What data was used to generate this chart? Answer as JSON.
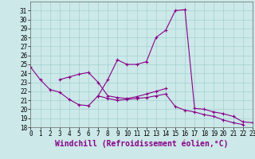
{
  "xlabel": "Windchill (Refroidissement éolien,°C)",
  "bg_color": "#cce8e8",
  "line_color": "#880088",
  "grid_color": "#99cccc",
  "hours": [
    0,
    1,
    2,
    3,
    4,
    5,
    6,
    7,
    8,
    9,
    10,
    11,
    12,
    13,
    14,
    15,
    16,
    17,
    18,
    19,
    20,
    21,
    22,
    23
  ],
  "curve1": [
    24.7,
    23.3,
    22.2,
    21.9,
    21.1,
    20.5,
    20.4,
    21.5,
    23.3,
    25.5,
    25.0,
    25.0,
    25.3,
    28.0,
    28.8,
    31.0,
    31.1,
    20.1,
    20.0,
    19.7,
    19.5,
    19.2,
    18.6,
    18.5
  ],
  "curve2": [
    null,
    null,
    null,
    23.3,
    23.6,
    23.9,
    24.1,
    23.0,
    21.5,
    21.3,
    21.2,
    21.4,
    21.7,
    22.0,
    22.3,
    null,
    null,
    null,
    null,
    null,
    null,
    null,
    null,
    null
  ],
  "curve3": [
    null,
    null,
    null,
    null,
    null,
    null,
    null,
    21.5,
    21.2,
    21.0,
    21.1,
    21.2,
    21.3,
    21.5,
    21.7,
    20.3,
    19.9,
    19.7,
    19.4,
    19.2,
    18.8,
    18.5,
    18.3,
    null
  ],
  "xlim": [
    0,
    23
  ],
  "ylim": [
    18,
    32
  ],
  "yticks": [
    18,
    19,
    20,
    21,
    22,
    23,
    24,
    25,
    26,
    27,
    28,
    29,
    30,
    31
  ],
  "xticks": [
    0,
    1,
    2,
    3,
    4,
    5,
    6,
    7,
    8,
    9,
    10,
    11,
    12,
    13,
    14,
    15,
    16,
    17,
    18,
    19,
    20,
    21,
    22,
    23
  ],
  "tick_fontsize": 5.5,
  "xlabel_fontsize": 7.0
}
